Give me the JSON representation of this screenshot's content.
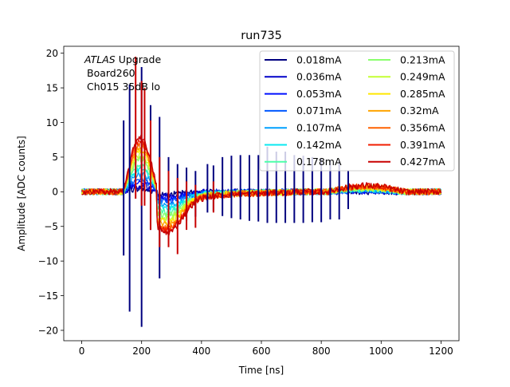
{
  "chart_data": {
    "type": "line",
    "title": "run735",
    "xlabel": "Time [ns]",
    "ylabel": "Amplitude [ADC counts]",
    "xlim": [
      -60,
      1260
    ],
    "ylim": [
      -21.5,
      21
    ],
    "xticks": [
      0,
      200,
      400,
      600,
      800,
      1000,
      1200
    ],
    "yticks": [
      -20,
      -15,
      -10,
      -5,
      0,
      5,
      10,
      15,
      20
    ],
    "grid": false,
    "legend_position": "top-right",
    "legend_columns": 2,
    "annotation": {
      "italic": "ATLAS",
      "line1_rest": " Upgrade",
      "line2": "Board260",
      "line3": "Ch015 35dB lo"
    },
    "series": [
      {
        "name": "0.018mA",
        "color": "#00007f",
        "amp": 0.5
      },
      {
        "name": "0.036mA",
        "color": "#0000c8",
        "amp": 0.9
      },
      {
        "name": "0.053mA",
        "color": "#0010ff",
        "amp": 1.4
      },
      {
        "name": "0.071mA",
        "color": "#0058ff",
        "amp": 1.9
      },
      {
        "name": "0.107mA",
        "color": "#00a0ff",
        "amp": 2.6
      },
      {
        "name": "0.142mA",
        "color": "#0ae8f0",
        "amp": 3.3
      },
      {
        "name": "0.178mA",
        "color": "#4dffaa",
        "amp": 4.0
      },
      {
        "name": "0.213mA",
        "color": "#8aff6d",
        "amp": 4.7
      },
      {
        "name": "0.249mA",
        "color": "#c4ff33",
        "amp": 5.3
      },
      {
        "name": "0.285mA",
        "color": "#ffe600",
        "amp": 5.9
      },
      {
        "name": "0.32mA",
        "color": "#ffa400",
        "amp": 6.5
      },
      {
        "name": "0.356mA",
        "color": "#ff6200",
        "amp": 7.0
      },
      {
        "name": "0.391mA",
        "color": "#f11d00",
        "amp": 7.5
      },
      {
        "name": "0.427mA",
        "color": "#c80000",
        "amp": 8.0
      }
    ],
    "spikes": [
      {
        "series": 0,
        "t": 140,
        "ymin": -9.2,
        "ymax": 10.3
      },
      {
        "series": 0,
        "t": 160,
        "ymin": -17.3,
        "ymax": 15.5
      },
      {
        "series": 0,
        "t": 200,
        "ymin": -19.5,
        "ymax": 18.0
      },
      {
        "series": 0,
        "t": 230,
        "ymin": -5.5,
        "ymax": 12.5
      },
      {
        "series": 0,
        "t": 260,
        "ymin": -12.5,
        "ymax": 10.8
      },
      {
        "series": 0,
        "t": 290,
        "ymin": -6.0,
        "ymax": 5.0
      },
      {
        "series": 0,
        "t": 320,
        "ymin": -5.0,
        "ymax": 4.0
      },
      {
        "series": 0,
        "t": 350,
        "ymin": -4.2,
        "ymax": 3.5
      },
      {
        "series": 0,
        "t": 380,
        "ymin": -3.6,
        "ymax": 3.0
      },
      {
        "series": 0,
        "t": 420,
        "ymin": -3.0,
        "ymax": 4.0
      },
      {
        "series": 0,
        "t": 440,
        "ymin": -2.8,
        "ymax": 3.8
      },
      {
        "series": 0,
        "t": 470,
        "ymin": -3.5,
        "ymax": 5.0
      },
      {
        "series": 0,
        "t": 500,
        "ymin": -3.8,
        "ymax": 5.2
      },
      {
        "series": 0,
        "t": 530,
        "ymin": -4.0,
        "ymax": 5.3
      },
      {
        "series": 0,
        "t": 560,
        "ymin": -4.2,
        "ymax": 5.3
      },
      {
        "series": 0,
        "t": 590,
        "ymin": -4.3,
        "ymax": 5.3
      },
      {
        "series": 0,
        "t": 620,
        "ymin": -4.5,
        "ymax": 6.5
      },
      {
        "series": 0,
        "t": 650,
        "ymin": -4.5,
        "ymax": 5.8
      },
      {
        "series": 0,
        "t": 680,
        "ymin": -4.5,
        "ymax": 5.8
      },
      {
        "series": 0,
        "t": 710,
        "ymin": -4.5,
        "ymax": 5.3
      },
      {
        "series": 0,
        "t": 740,
        "ymin": -4.5,
        "ymax": 5.2
      },
      {
        "series": 0,
        "t": 770,
        "ymin": -4.4,
        "ymax": 5.0
      },
      {
        "series": 0,
        "t": 800,
        "ymin": -4.4,
        "ymax": 4.8
      },
      {
        "series": 0,
        "t": 830,
        "ymin": -4.0,
        "ymax": 4.6
      },
      {
        "series": 0,
        "t": 860,
        "ymin": -4.0,
        "ymax": 4.5
      },
      {
        "series": 0,
        "t": 890,
        "ymin": -2.5,
        "ymax": 3.0
      },
      {
        "series": 13,
        "t": 180,
        "ymin": -1.0,
        "ymax": 19.5
      },
      {
        "series": 13,
        "t": 200,
        "ymin": -2.0,
        "ymax": 16.0
      },
      {
        "series": 13,
        "t": 210,
        "ymin": -2.0,
        "ymax": 15.0
      },
      {
        "series": 13,
        "t": 230,
        "ymin": -5.5,
        "ymax": 10.3
      },
      {
        "series": 13,
        "t": 260,
        "ymin": -8.0,
        "ymax": 5.0
      },
      {
        "series": 13,
        "t": 290,
        "ymin": -8.0,
        "ymax": 3.0
      },
      {
        "series": 13,
        "t": 320,
        "ymin": -9.0,
        "ymax": 2.0
      },
      {
        "series": 13,
        "t": 350,
        "ymin": -5.5,
        "ymax": 1.5
      },
      {
        "series": 13,
        "t": 380,
        "ymin": -5.2,
        "ymax": 1.0
      },
      {
        "series": 13,
        "t": 440,
        "ymin": -3.0,
        "ymax": 1.5
      }
    ]
  }
}
